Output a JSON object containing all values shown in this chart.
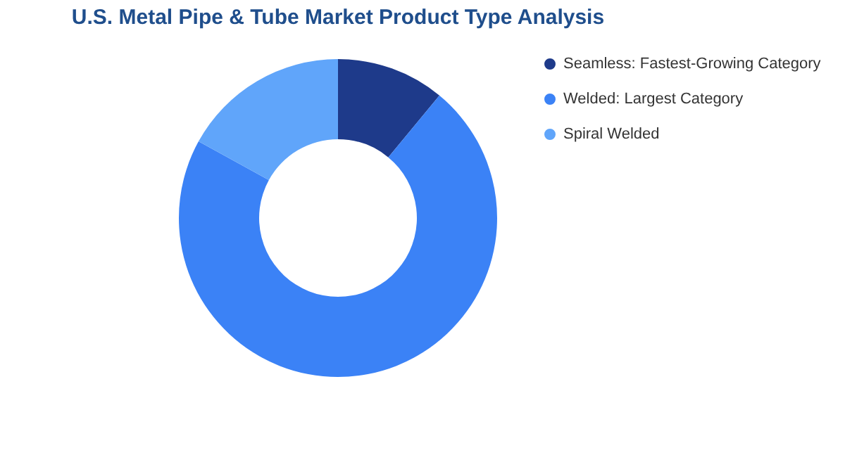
{
  "chart_data": {
    "type": "donut",
    "title": "U.S. Metal Pipe & Tube Market Product Type Analysis",
    "categories": [
      "Seamless: Fastest-Growing Category",
      "Welded: Largest Category",
      "Spiral Welded"
    ],
    "values": [
      11,
      72,
      17
    ],
    "colors": [
      "#1e3a8a",
      "#3b82f6",
      "#60a5fa"
    ],
    "legend": "right"
  }
}
